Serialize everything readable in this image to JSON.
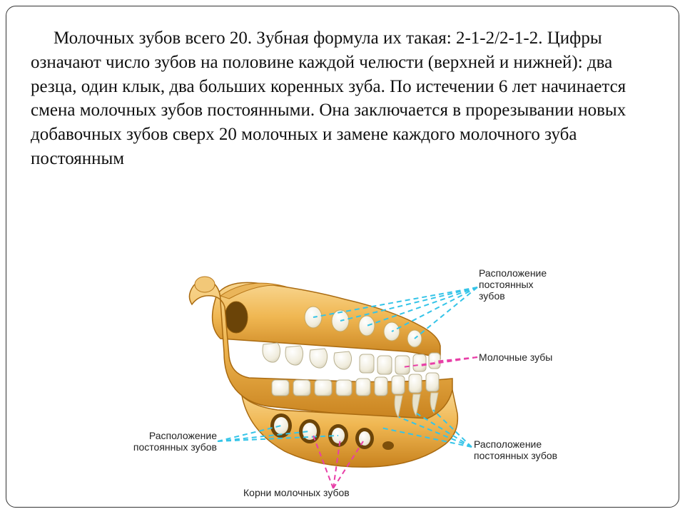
{
  "paragraph": "Молочных зубов всего 20. Зубная формула их такая: 2-1-2/2-1-2. Цифры означают число зубов на половине каждой челюсти (верхней и нижней): два резца, один клык, два больших коренных зуба. По истечении 6 лет начинается смена молочных зубов постоянными. Она заключается в прорезывании новых добавочных зубов сверх 20 молочных и замене каждого молочного зуба постоянным",
  "labels": {
    "perm_top": "Расположение\nпостоянных\nзубов",
    "milk_teeth": "Молочные зубы",
    "perm_left": "Расположение\nпостоянных зубов",
    "roots": "Корни молочных зубов",
    "perm_right": "Расположение\nпостоянных зубов"
  },
  "colors": {
    "bone_light": "#f4c767",
    "bone_mid": "#e8a93f",
    "bone_dark": "#c07818",
    "tooth": "#f5f2e8",
    "tooth_shadow": "#d8d4c2",
    "line_cyan": "#35c4e8",
    "line_magenta": "#e83fa8",
    "dash": "6 5"
  }
}
